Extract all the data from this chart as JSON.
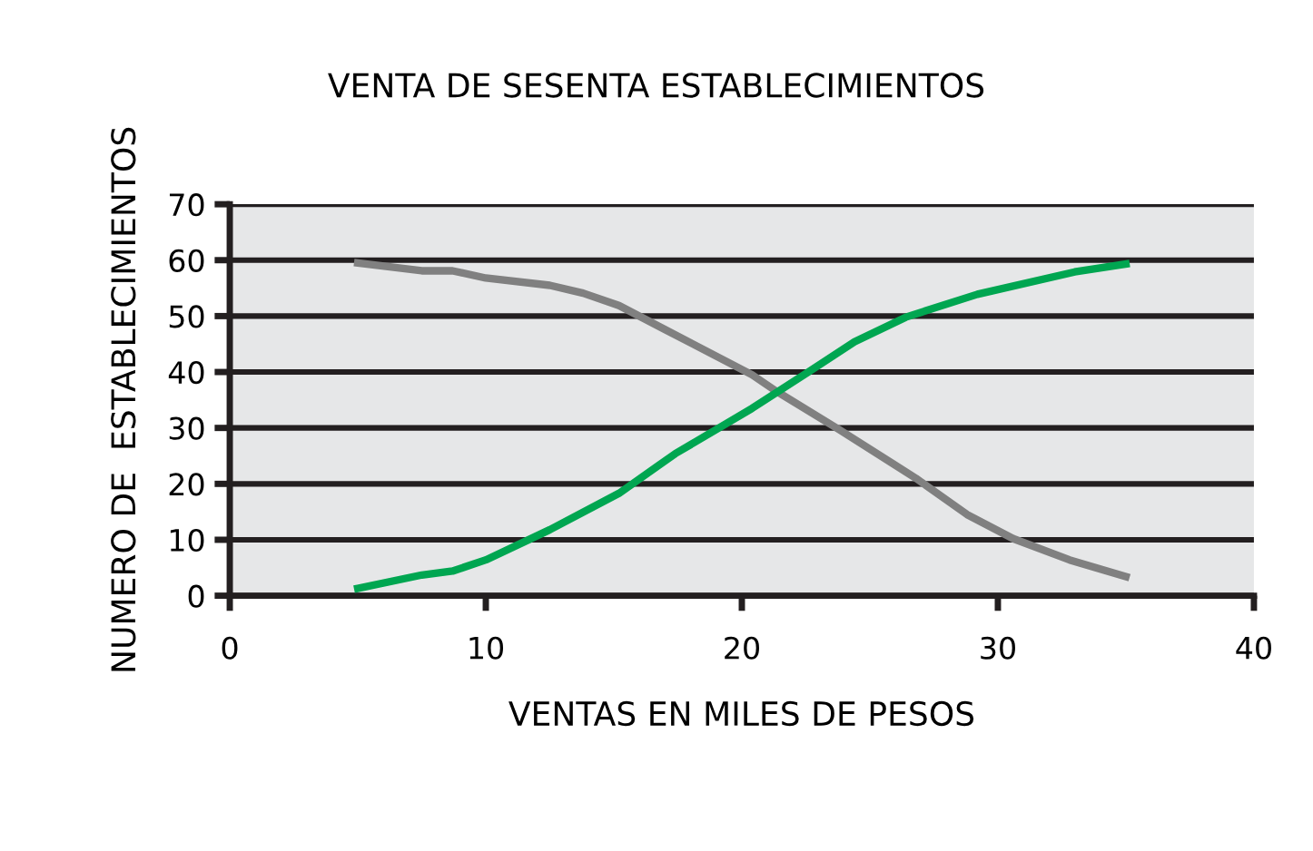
{
  "chart_data": {
    "type": "line",
    "title": "VENTA DE SESENTA ESTABLECIMIENTOS",
    "xlabel": "VENTAS EN MILES DE PESOS",
    "ylabel": "NUMERO DE  ESTABLECIMIENTOS",
    "series": [
      {
        "color": "#808080",
        "x": [
          5,
          7.5,
          8.7,
          10,
          12.5,
          13.8,
          15.2,
          17,
          20.4,
          21.3,
          23.8,
          26.8,
          28.8,
          30.6,
          32.8,
          35
        ],
        "values": [
          59.5,
          58.1,
          58.1,
          56.8,
          55.5,
          54.1,
          51.9,
          47.6,
          39.5,
          36.7,
          29.7,
          21,
          14.5,
          10.2,
          6.4,
          3.4
        ]
      },
      {
        "color": "#00a651",
        "x": [
          5,
          7.5,
          8.7,
          10,
          12.5,
          15.2,
          17.4,
          20.4,
          22.6,
          24.4,
          26.4,
          29.2,
          33,
          35
        ],
        "values": [
          1.3,
          3.7,
          4.4,
          6.4,
          11.8,
          18.3,
          25.4,
          33.5,
          40,
          45.4,
          49.8,
          53.9,
          57.9,
          59.3
        ]
      }
    ],
    "xlim": [
      0,
      40
    ],
    "ylim": [
      0,
      70
    ],
    "xticks": [
      0,
      10,
      20,
      30,
      40
    ],
    "yticks": [
      0,
      10,
      20,
      30,
      40,
      50,
      60,
      70
    ],
    "grid": "y",
    "legend": false,
    "marker": "none",
    "line_style": "solid"
  }
}
